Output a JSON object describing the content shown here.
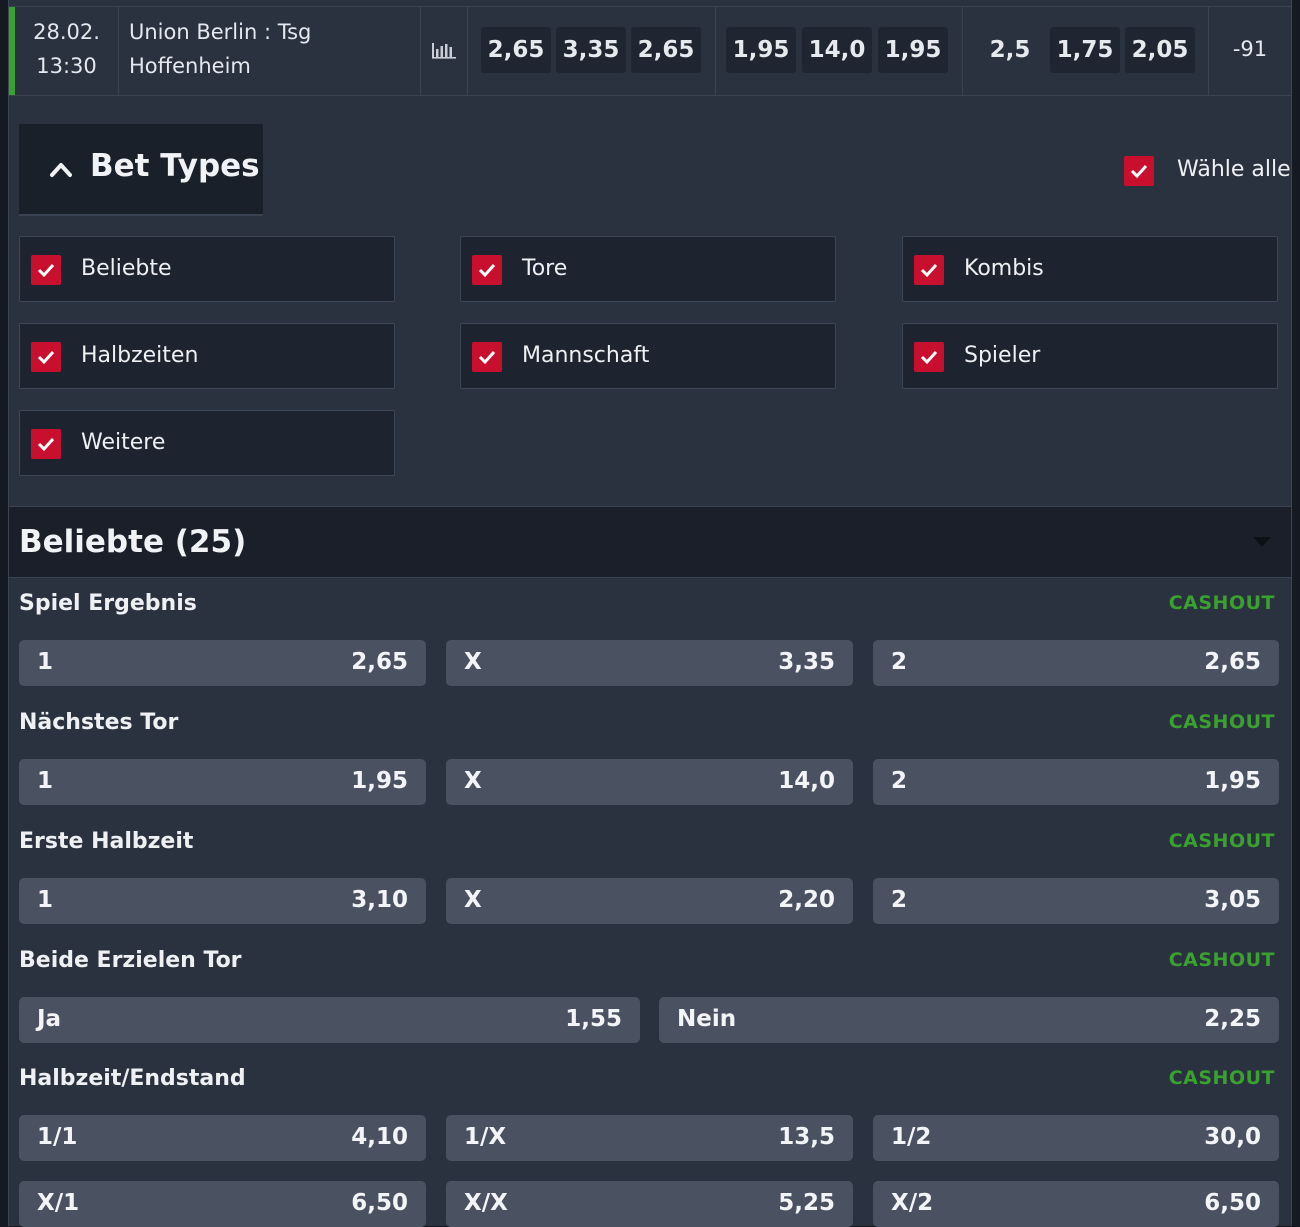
{
  "match": {
    "date": "28.02.",
    "time": "13:30",
    "team_line1": "Union Berlin : Tsg",
    "team_line2": "Hoffenheim",
    "odds_group1": [
      "2,65",
      "3,35",
      "2,65"
    ],
    "odds_group2": [
      "1,95",
      "14,0",
      "1,95"
    ],
    "odds_group3": [
      "2,5",
      "1,75",
      "2,05"
    ],
    "more_markets": "-91"
  },
  "bet_types": {
    "title": "Bet Types",
    "select_all": "Wähle alle",
    "filters": [
      "Beliebte",
      "Tore",
      "Kombis",
      "Halbzeiten",
      "Mannschaft",
      "Spieler",
      "Weitere"
    ]
  },
  "section": {
    "title": "Beliebte (25)"
  },
  "markets": [
    {
      "title": "Spiel Ergebnis",
      "cashout": "CASHOUT",
      "outcomes": [
        {
          "label": "1",
          "odd": "2,65"
        },
        {
          "label": "X",
          "odd": "3,35"
        },
        {
          "label": "2",
          "odd": "2,65"
        }
      ]
    },
    {
      "title": "Nächstes Tor",
      "cashout": "CASHOUT",
      "outcomes": [
        {
          "label": "1",
          "odd": "1,95"
        },
        {
          "label": "X",
          "odd": "14,0"
        },
        {
          "label": "2",
          "odd": "1,95"
        }
      ]
    },
    {
      "title": "Erste Halbzeit",
      "cashout": "CASHOUT",
      "outcomes": [
        {
          "label": "1",
          "odd": "3,10"
        },
        {
          "label": "X",
          "odd": "2,20"
        },
        {
          "label": "2",
          "odd": "3,05"
        }
      ]
    },
    {
      "title": "Beide Erzielen Tor",
      "cashout": "CASHOUT",
      "outcomes": [
        {
          "label": "Ja",
          "odd": "1,55"
        },
        {
          "label": "Nein",
          "odd": "2,25"
        }
      ]
    },
    {
      "title": "Halbzeit/Endstand",
      "cashout": "CASHOUT",
      "outcomes": [
        {
          "label": "1/1",
          "odd": "4,10"
        },
        {
          "label": "1/X",
          "odd": "13,5"
        },
        {
          "label": "1/2",
          "odd": "30,0"
        },
        {
          "label": "X/1",
          "odd": "6,50"
        },
        {
          "label": "X/X",
          "odd": "5,25"
        },
        {
          "label": "X/2",
          "odd": "6,50"
        }
      ]
    }
  ],
  "colors": {
    "accent_green": "#3aa02f",
    "checkbox_red": "#c8102e",
    "odds_button": "#4a5262"
  },
  "icons": {
    "stats": "bar-chart-icon",
    "collapse": "chevron-up-icon",
    "expand": "caret-down-icon",
    "check": "checkmark-icon"
  }
}
